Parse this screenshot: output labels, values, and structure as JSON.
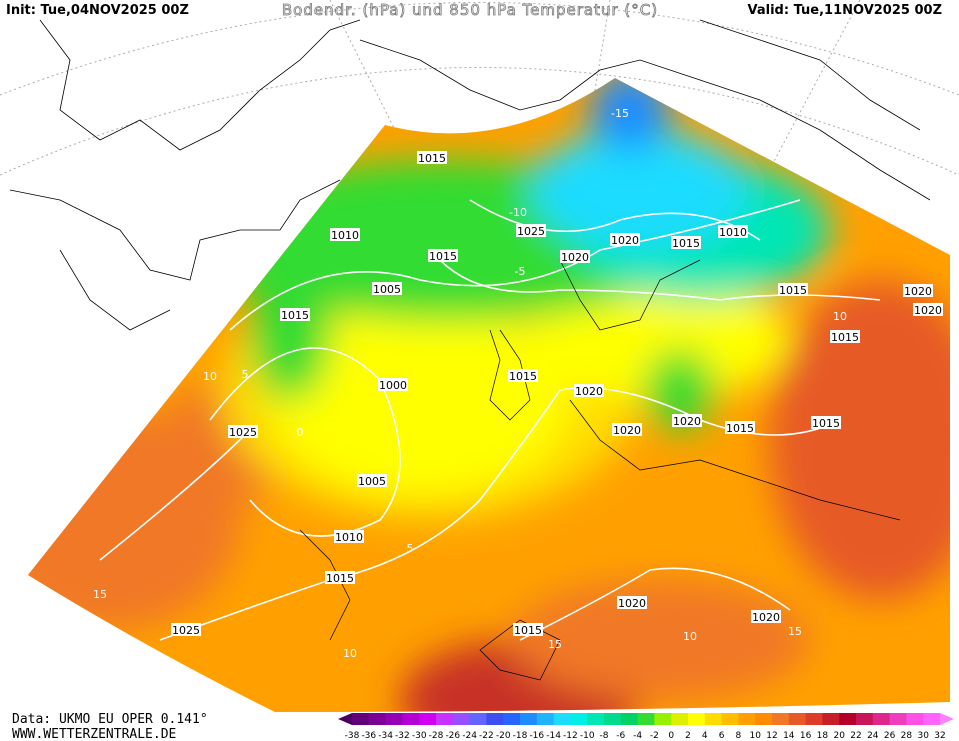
{
  "header": {
    "init": "Init: Tue,04NOV2025 00Z",
    "title": "Bodendr. (hPa) und 850 hPa Temperatur (°C)",
    "valid": "Valid: Tue,11NOV2025 00Z"
  },
  "footer": {
    "source": "Data: UKMO EU OPER 0.141°",
    "site": "WWW.WETTERZENTRALE.DE"
  },
  "isobar_labels": [
    "1015",
    "1010",
    "1015",
    "1025",
    "1020",
    "1020",
    "1015",
    "1010",
    "1005",
    "1015",
    "1015",
    "1020",
    "1020",
    "1015",
    "1000",
    "1015",
    "1020",
    "1020",
    "1020",
    "1015",
    "1015",
    "1025",
    "1005",
    "1010",
    "1015",
    "1020",
    "1020",
    "1015",
    "1025"
  ],
  "temperature_labels": [
    10,
    5,
    0,
    15,
    10,
    15,
    10,
    15,
    5,
    -5,
    -10,
    -15,
    10
  ],
  "legend": {
    "ticks": [
      -38,
      -36,
      -34,
      -32,
      -30,
      -28,
      -26,
      -24,
      -22,
      -20,
      -18,
      -16,
      -14,
      -12,
      -10,
      -8,
      -6,
      -4,
      -2,
      0,
      2,
      4,
      6,
      8,
      10,
      12,
      14,
      16,
      18,
      20,
      22,
      24,
      26,
      28,
      30,
      32
    ],
    "colors": [
      "#4b0060",
      "#64007a",
      "#7d0096",
      "#9600b4",
      "#b400d2",
      "#d200f0",
      "#c832ff",
      "#9650ff",
      "#6464ff",
      "#3c50f0",
      "#2864ff",
      "#1e8cff",
      "#1eb4ff",
      "#1edcff",
      "#00f0e6",
      "#00e6b4",
      "#00dc8c",
      "#00d264",
      "#32dc32",
      "#96f000",
      "#dcf000",
      "#ffff00",
      "#ffdc00",
      "#ffbe00",
      "#ffa000",
      "#ff8c00",
      "#f07828",
      "#e65a28",
      "#dc3c28",
      "#c81e28",
      "#b40028",
      "#c8145a",
      "#dc288c",
      "#f03cbe",
      "#ff50e6",
      "#ff64ff",
      "#ff80ff"
    ]
  }
}
